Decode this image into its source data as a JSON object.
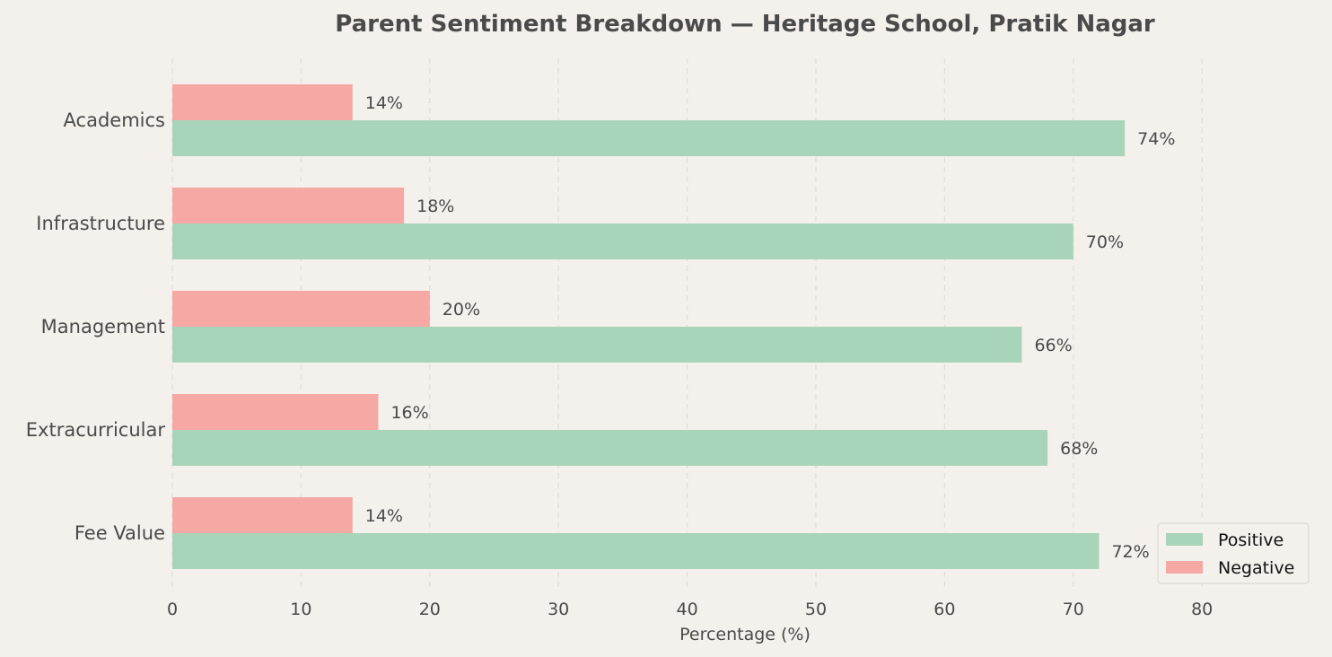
{
  "chart_data": {
    "type": "bar",
    "orientation": "horizontal",
    "title": "Parent Sentiment Breakdown — Heritage School, Pratik Nagar",
    "xlabel": "Percentage (%)",
    "ylabel": "",
    "xlim": [
      0,
      88
    ],
    "xticks": [
      0,
      10,
      20,
      30,
      40,
      50,
      60,
      70,
      80
    ],
    "categories": [
      "Academics",
      "Infrastructure",
      "Management",
      "Extracurricular",
      "Fee Value"
    ],
    "series": [
      {
        "name": "Positive",
        "color": "#a8d5b9",
        "values": [
          74,
          70,
          66,
          68,
          72
        ]
      },
      {
        "name": "Negative",
        "color": "#f5a8a4",
        "values": [
          14,
          18,
          20,
          16,
          14
        ]
      }
    ],
    "value_suffix": "%",
    "grid": "vertical dashed",
    "legend_position": "lower-right"
  }
}
